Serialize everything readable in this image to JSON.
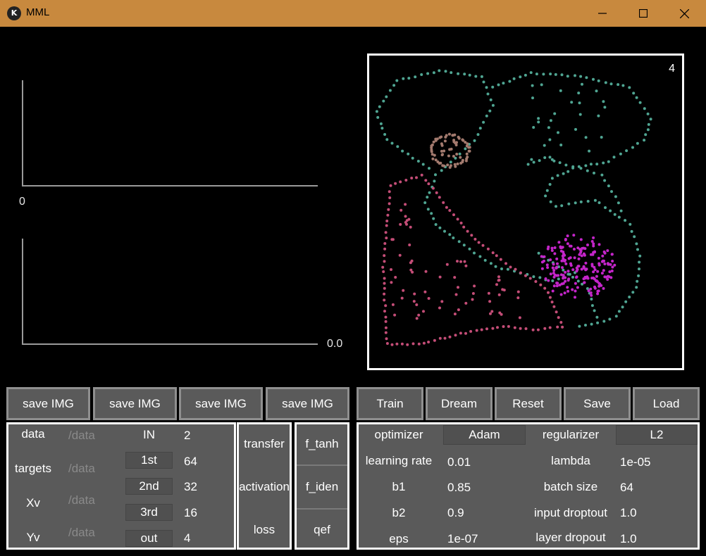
{
  "window": {
    "title": "MML",
    "logo": "kivy-logo-icon"
  },
  "plots": {
    "top_axis_label": "0",
    "bottom_axis_label": "0.0",
    "scatter_counter": "4"
  },
  "scatter": {
    "clusters": [
      {
        "name": "teal-spiral",
        "color": "#4fa592"
      },
      {
        "name": "brown-ring",
        "color": "#a37a6e"
      },
      {
        "name": "pink-triangle",
        "color": "#c44d77"
      },
      {
        "name": "magenta-blob",
        "color": "#c425c9"
      }
    ]
  },
  "save_buttons": [
    "save IMG",
    "save IMG",
    "save IMG",
    "save IMG"
  ],
  "actions": {
    "train": "Train",
    "dream": "Dream",
    "reset": "Reset",
    "save": "Save",
    "load": "Load"
  },
  "data_panel": {
    "rows": [
      {
        "label": "data",
        "placeholder": "/data"
      },
      {
        "label": "targets",
        "placeholder": "/data"
      },
      {
        "label": "Xv",
        "placeholder": "/data"
      },
      {
        "label": "Yv",
        "placeholder": "/data"
      }
    ],
    "layers": [
      {
        "label": "IN",
        "value": "2"
      },
      {
        "label": "1st",
        "value": "64"
      },
      {
        "label": "2nd",
        "value": "32"
      },
      {
        "label": "3rd",
        "value": "16"
      },
      {
        "label": "out",
        "value": "4"
      }
    ]
  },
  "func_panel": {
    "labels": {
      "transfer": "transfer",
      "activation": "activation",
      "loss": "loss"
    },
    "values": {
      "transfer": "f_tanh",
      "activation": "f_iden",
      "loss": "qef"
    }
  },
  "opt_panel": {
    "optimizer_label": "optimizer",
    "optimizer_value": "Adam",
    "regularizer_label": "regularizer",
    "regularizer_value": "L2",
    "rows_left": [
      {
        "label": "learning rate",
        "value": "0.01"
      },
      {
        "label": "b1",
        "value": "0.85"
      },
      {
        "label": "b2",
        "value": "0.9"
      },
      {
        "label": "eps",
        "value": "1e-07"
      }
    ],
    "rows_right": [
      {
        "label": "lambda",
        "value": "1e-05"
      },
      {
        "label": "batch size",
        "value": "64"
      },
      {
        "label": "input droptout",
        "value": "1.0"
      },
      {
        "label": "layer dropout",
        "value": "1.0"
      }
    ]
  }
}
